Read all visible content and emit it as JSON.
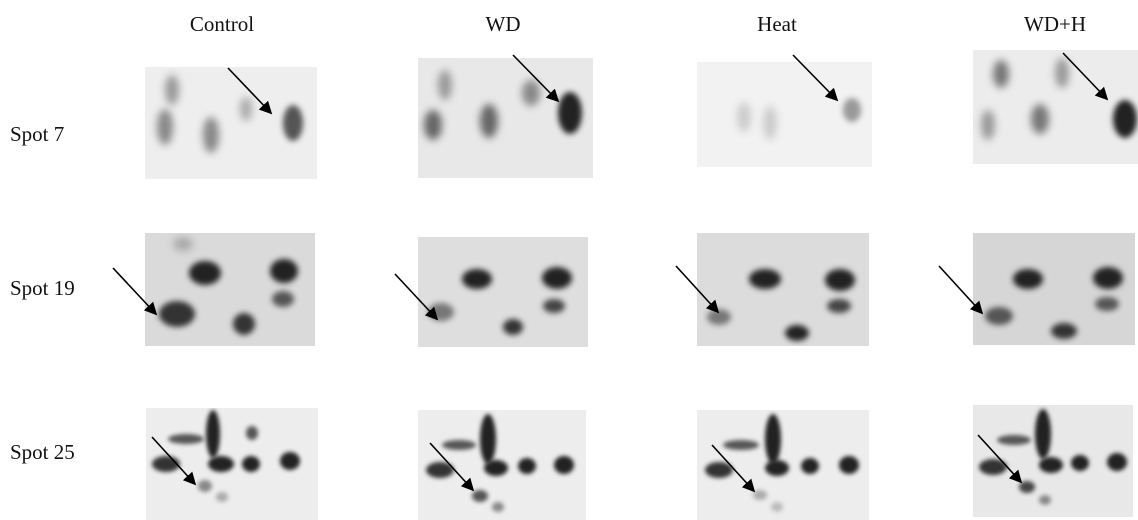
{
  "columns": [
    "Control",
    "WD",
    "Heat",
    "WD+H"
  ],
  "rows": [
    "Spot 7",
    "Spot 19",
    "Spot 25"
  ]
}
